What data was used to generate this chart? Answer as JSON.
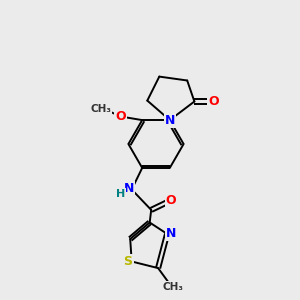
{
  "background_color": "#ebebeb",
  "bond_color": "#000000",
  "atom_colors": {
    "N": "#0000ff",
    "O": "#ff0000",
    "S": "#b8b800",
    "C": "#000000",
    "H": "#008080"
  },
  "font_size_atom": 9,
  "font_size_label": 8,
  "line_width": 1.4
}
